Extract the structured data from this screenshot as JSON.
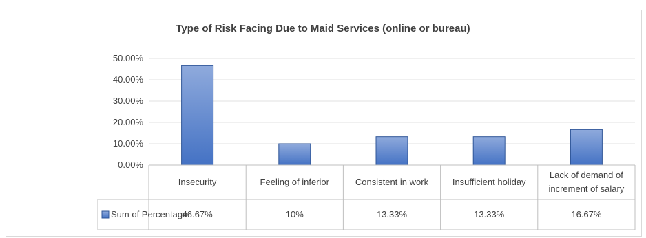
{
  "chart_data": {
    "type": "bar",
    "title": "Type of Risk Facing Due to Maid Services (online or bureau)",
    "categories": [
      "Insecurity",
      "Feeling of inferior",
      "Consistent in work",
      "Insufficient holiday",
      "Lack of  demand of increment of salary"
    ],
    "series": [
      {
        "name": "Sum of Percentage",
        "values": [
          46.67,
          10,
          13.33,
          13.33,
          16.67
        ],
        "labels": [
          "46.67%",
          "10%",
          "13.33%",
          "13.33%",
          "16.67%"
        ]
      }
    ],
    "ylim": [
      0,
      50
    ],
    "yticks": [
      0,
      10,
      20,
      30,
      40,
      50
    ],
    "ytick_labels": [
      "0.00%",
      "10.00%",
      "20.00%",
      "30.00%",
      "40.00%",
      "50.00%"
    ],
    "bar_color": "#4472c4",
    "legend": "data-table"
  }
}
